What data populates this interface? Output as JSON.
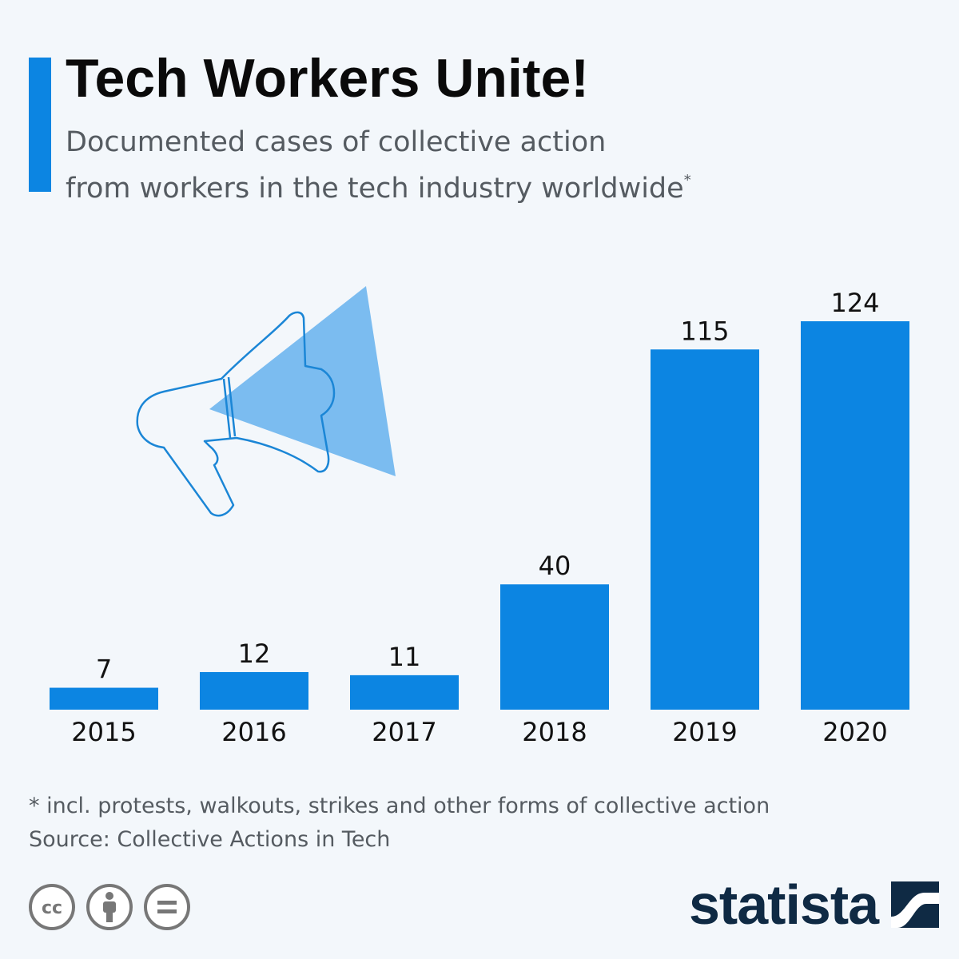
{
  "header": {
    "title": "Tech Workers Unite!",
    "subtitle_line1": "Documented cases of collective action",
    "subtitle_line2": "from workers in the tech industry worldwide",
    "subtitle_mark": "*"
  },
  "chart_data": {
    "type": "bar",
    "categories": [
      "2015",
      "2016",
      "2017",
      "2018",
      "2019",
      "2020"
    ],
    "values": [
      7,
      12,
      11,
      40,
      115,
      124
    ],
    "title": "",
    "xlabel": "",
    "ylabel": "",
    "ylim": [
      0,
      124
    ],
    "grid": false,
    "bar_color": "#0c85e2",
    "data_labels": true
  },
  "footer": {
    "note": "* incl. protests, walkouts, strikes and other forms of collective action",
    "source": "Source: Collective Actions in Tech",
    "brand": "statista",
    "license_icons": [
      "cc-icon",
      "attribution-icon",
      "no-derivatives-icon"
    ]
  },
  "colors": {
    "accent": "#0c85e2",
    "background": "#f3f7fb",
    "brand_dark": "#0f2a44",
    "illustration_fill": "#7bbcf0"
  }
}
